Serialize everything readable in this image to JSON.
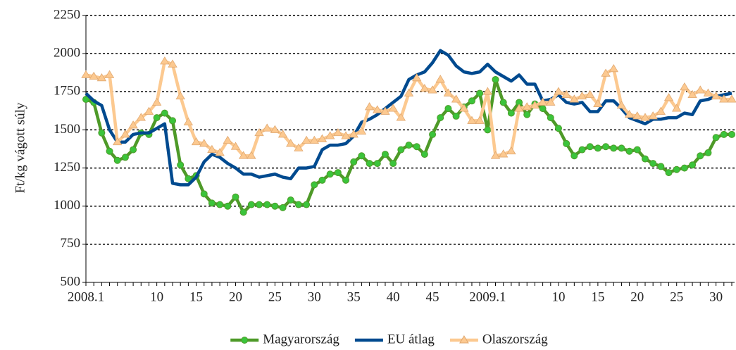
{
  "chart_data": {
    "type": "line",
    "y_label": "Ft/kg vágott súly",
    "categories": [
      "2008.1",
      null,
      null,
      null,
      null,
      null,
      null,
      null,
      null,
      "10",
      null,
      null,
      null,
      null,
      "15",
      null,
      null,
      null,
      null,
      "20",
      null,
      null,
      null,
      null,
      "25",
      null,
      null,
      null,
      null,
      "30",
      null,
      null,
      null,
      null,
      "35",
      null,
      null,
      null,
      null,
      "40",
      null,
      null,
      null,
      null,
      "45",
      null,
      null,
      null,
      null,
      null,
      null,
      "2009.1",
      null,
      null,
      null,
      null,
      null,
      null,
      null,
      null,
      "10",
      null,
      null,
      null,
      null,
      "15",
      null,
      null,
      null,
      null,
      "20",
      null,
      null,
      null,
      null,
      "25",
      null,
      null,
      null,
      null,
      "30",
      null,
      null
    ],
    "series": [
      {
        "name": "Magyarország",
        "color": "#4e9a28",
        "marker": "circle",
        "values": [
          1700,
          1680,
          1480,
          1360,
          1300,
          1320,
          1370,
          1480,
          1470,
          1580,
          1610,
          1560,
          1270,
          1180,
          1200,
          1080,
          1020,
          1010,
          1000,
          1060,
          960,
          1010,
          1010,
          1010,
          1000,
          990,
          1040,
          1010,
          1010,
          1140,
          1170,
          1210,
          1220,
          1170,
          1290,
          1330,
          1280,
          1280,
          1340,
          1280,
          1370,
          1400,
          1390,
          1340,
          1470,
          1580,
          1640,
          1590,
          1650,
          1690,
          1740,
          1500,
          1830,
          1680,
          1610,
          1680,
          1600,
          1670,
          1640,
          1580,
          1510,
          1410,
          1330,
          1370,
          1390,
          1380,
          1390,
          1380,
          1380,
          1360,
          1370,
          1310,
          1280,
          1260,
          1220,
          1240,
          1250,
          1270,
          1330,
          1350,
          1450,
          1470,
          1470
        ]
      },
      {
        "name": "EU átlag",
        "color": "#004a8f",
        "marker": "none",
        "values": [
          1740,
          1690,
          1660,
          1500,
          1420,
          1420,
          1470,
          1480,
          1480,
          1510,
          1540,
          1150,
          1140,
          1140,
          1190,
          1290,
          1340,
          1320,
          1280,
          1250,
          1210,
          1210,
          1190,
          1200,
          1210,
          1190,
          1180,
          1250,
          1250,
          1260,
          1370,
          1400,
          1400,
          1410,
          1460,
          1550,
          1570,
          1600,
          1640,
          1680,
          1720,
          1830,
          1860,
          1880,
          1940,
          2020,
          1990,
          1920,
          1880,
          1870,
          1880,
          1930,
          1880,
          1850,
          1820,
          1860,
          1800,
          1800,
          1690,
          1700,
          1730,
          1680,
          1670,
          1680,
          1620,
          1620,
          1690,
          1690,
          1640,
          1580,
          1560,
          1540,
          1570,
          1570,
          1580,
          1580,
          1610,
          1600,
          1690,
          1700,
          1720,
          1730,
          1740
        ]
      },
      {
        "name": "Olaszország",
        "color": "#fcc990",
        "marker": "triangle",
        "values": [
          1860,
          1850,
          1840,
          1860,
          1420,
          1470,
          1530,
          1580,
          1620,
          1680,
          1950,
          1930,
          1720,
          1550,
          1420,
          1410,
          1370,
          1350,
          1430,
          1390,
          1330,
          1330,
          1480,
          1510,
          1500,
          1470,
          1410,
          1380,
          1430,
          1430,
          1440,
          1460,
          1480,
          1460,
          1470,
          1490,
          1650,
          1630,
          1620,
          1640,
          1580,
          1740,
          1840,
          1770,
          1760,
          1830,
          1740,
          1700,
          1640,
          1560,
          1560,
          1750,
          1330,
          1340,
          1360,
          1640,
          1650,
          1660,
          1680,
          1680,
          1750,
          1730,
          1700,
          1720,
          1730,
          1670,
          1870,
          1900,
          1660,
          1600,
          1590,
          1580,
          1590,
          1620,
          1710,
          1640,
          1780,
          1730,
          1760,
          1740,
          1720,
          1700,
          1700
        ]
      }
    ],
    "ylim": [
      500,
      2250
    ],
    "yticks": [
      500,
      750,
      1000,
      1250,
      1500,
      1750,
      2000,
      2250
    ],
    "grid": true,
    "legend": "bottom"
  }
}
